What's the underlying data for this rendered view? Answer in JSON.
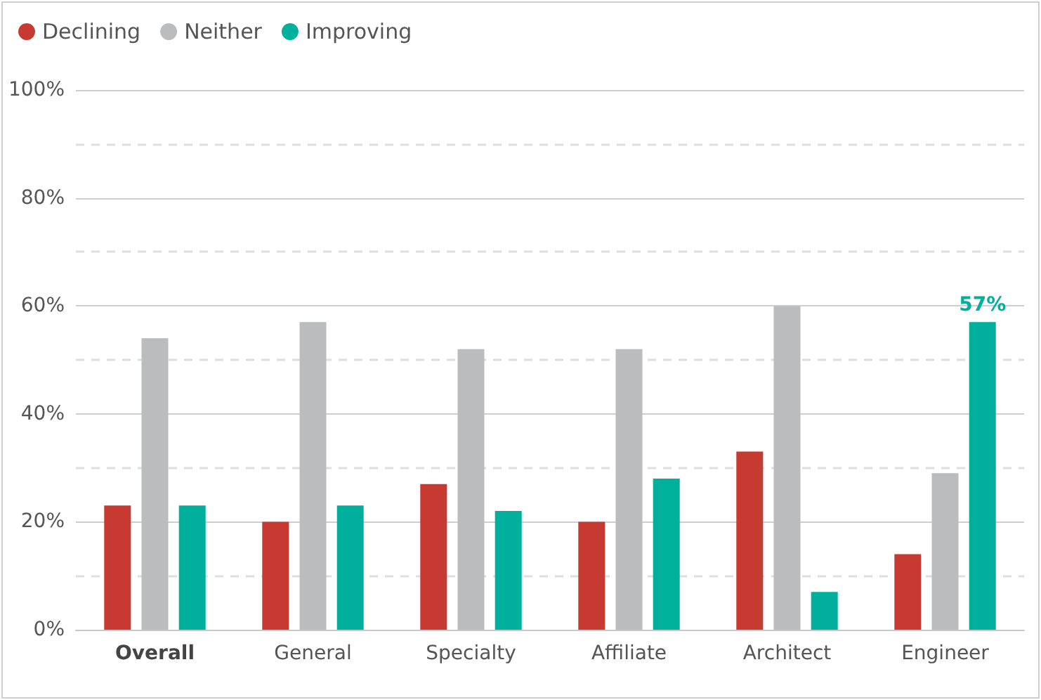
{
  "chart_data": {
    "type": "bar",
    "categories": [
      "Overall",
      "General",
      "Specialty",
      "Affiliate",
      "Architect",
      "Engineer"
    ],
    "series": [
      {
        "name": "Declining",
        "color": "#c63a32",
        "values": [
          23,
          20,
          27,
          20,
          33,
          14
        ]
      },
      {
        "name": "Neither",
        "color": "#bbbcbe",
        "values": [
          54,
          57,
          52,
          52,
          60,
          29
        ]
      },
      {
        "name": "Improving",
        "color": "#00b09c",
        "values": [
          23,
          23,
          22,
          28,
          7,
          57
        ],
        "value_labels": [
          null,
          null,
          null,
          null,
          null,
          "57%"
        ]
      }
    ],
    "ylim": [
      0,
      100
    ],
    "yticks": [
      {
        "value": 0,
        "label": "0%"
      },
      {
        "value": 20,
        "label": "20%"
      },
      {
        "value": 40,
        "label": "40%"
      },
      {
        "value": 60,
        "label": "60%"
      },
      {
        "value": 80,
        "label": "80%"
      },
      {
        "value": 100,
        "label": "100%"
      }
    ],
    "grid": "y",
    "legend": "top left"
  }
}
